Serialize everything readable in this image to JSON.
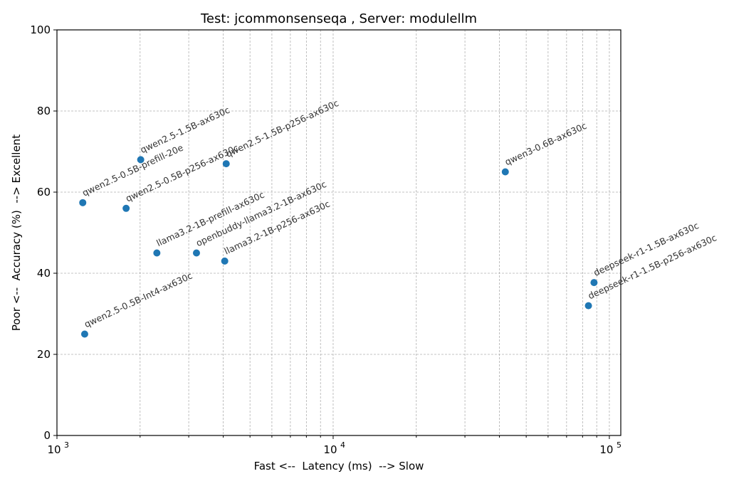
{
  "chart_data": {
    "type": "scatter",
    "title": "Test: jcommonsenseqa , Server: modulellm",
    "xlabel": "Fast <--  Latency (ms)  --> Slow",
    "ylabel": "Poor <--  Accuracy (%)  --> Excellent",
    "xscale": "log",
    "xlim": [
      1000,
      110000
    ],
    "ylim": [
      0,
      100
    ],
    "grid": true,
    "marker_color": "#1f77b4",
    "yticks": [
      0,
      20,
      40,
      60,
      80,
      100
    ],
    "xticks": [
      {
        "base": "10",
        "exp": "3",
        "value": 1000
      },
      {
        "base": "10",
        "exp": "4",
        "value": 10000
      },
      {
        "base": "10",
        "exp": "5",
        "value": 100000
      }
    ],
    "points": [
      {
        "label": "qwen2.5-0.5B-prefill-20e",
        "x": 1240,
        "y": 57.4
      },
      {
        "label": "qwen2.5-1.5B-ax630c",
        "x": 2010,
        "y": 68.0
      },
      {
        "label": "qwen2.5-0.5B-p256-ax630c",
        "x": 1780,
        "y": 56.0
      },
      {
        "label": "qwen2.5-1.5B-p256-ax630c",
        "x": 4100,
        "y": 67.0
      },
      {
        "label": "llama3.2-1B-prefill-ax630c",
        "x": 2300,
        "y": 45.0
      },
      {
        "label": "openbuddy-llama3.2-1B-ax630c",
        "x": 3200,
        "y": 45.0
      },
      {
        "label": "llama3.2-1B-p256-ax630c",
        "x": 4050,
        "y": 43.0
      },
      {
        "label": "qwen2.5-0.5B-Int4-ax630c",
        "x": 1260,
        "y": 25.0
      },
      {
        "label": "qwen3-0.6B-ax630c",
        "x": 42000,
        "y": 65.0
      },
      {
        "label": "deepseek-r1-1.5B-ax630c",
        "x": 88000,
        "y": 37.7
      },
      {
        "label": "deepseek-r1-1.5B-p256-ax630c",
        "x": 84000,
        "y": 32.0
      }
    ]
  }
}
